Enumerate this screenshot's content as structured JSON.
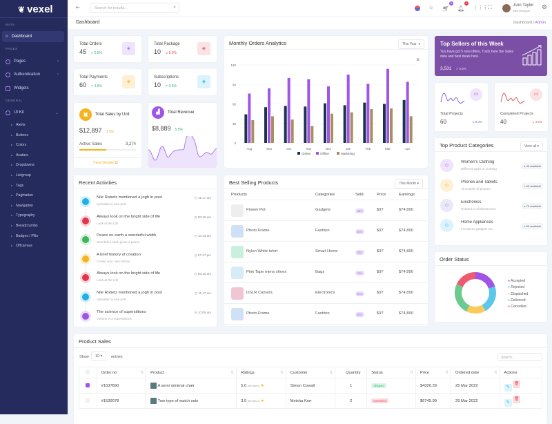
{
  "app": {
    "name": "vexel"
  },
  "sidebar": {
    "sections": [
      "MAIN",
      "PAGES",
      "GENERAL"
    ],
    "items": [
      {
        "label": "Dashboard",
        "icon": "home-icon",
        "active": true
      },
      {
        "label": "Pages",
        "icon": "pages-icon"
      },
      {
        "label": "Authentication",
        "icon": "auth-icon"
      },
      {
        "label": "Widgets",
        "icon": "widgets-icon"
      },
      {
        "label": "UI Kit",
        "icon": "uikit-icon"
      }
    ],
    "uikit": [
      "Alerts",
      "Buttons",
      "Colors",
      "Avatars",
      "Dropdowns",
      "Listgroup",
      "Tags",
      "Pagination",
      "Navigation",
      "Typography",
      "Breadcrumbs",
      "Badges / Pills",
      "Offcanvas"
    ]
  },
  "header": {
    "search_placeholder": "Search for results...",
    "cart_count": "5",
    "notif_count": "4",
    "user_name": "Json Taylor",
    "user_role": "Web Designer"
  },
  "page": {
    "title": "Dashboard",
    "breadcrumb": [
      "Dashboard",
      "Admin"
    ]
  },
  "stats": [
    {
      "label": "Total Orders",
      "value": "45",
      "change": "0.5%",
      "trend": "up",
      "color": "#a77be6",
      "bg": "#efe4fc"
    },
    {
      "label": "Total Package",
      "value": "10",
      "change": "8.0%",
      "trend": "down",
      "color": "#e2515f",
      "bg": "#fbe2e4"
    },
    {
      "label": "Total Payments",
      "value": "60",
      "change": "3.5%",
      "trend": "up",
      "color": "#f5b031",
      "bg": "#fdf0d5"
    },
    {
      "label": "Subscriptions",
      "value": "10",
      "change": "0.5%",
      "trend": "up",
      "color": "#2bb0e0",
      "bg": "#dbf3fb"
    }
  ],
  "sales_unit": {
    "title": "Total Sales by Unit",
    "value": "$12,897",
    "change": "3.5%",
    "active_label": "Active Sales",
    "active_value": "3,274",
    "progress": 0.48,
    "link": "View Details"
  },
  "revenue": {
    "title": "Total Revenue",
    "value": "$8,889",
    "change": "5.5%"
  },
  "chart_data": {
    "type": "bar",
    "title": "Monthly Orders Analytics",
    "filter": "This Year",
    "categories": [
      "Aug",
      "Sep",
      "Oct",
      "Nov",
      "Dec",
      "Jan",
      "Feb",
      "Mar",
      "Apr"
    ],
    "ylim": [
      0,
      120
    ],
    "yticks": [
      0,
      30,
      60,
      90,
      120
    ],
    "grid": true,
    "legend": "bottom",
    "series": [
      {
        "name": "Online",
        "color": "#1b3350",
        "values": [
          44,
          55,
          57,
          56,
          61,
          58,
          62,
          60,
          66
        ]
      },
      {
        "name": "Offline",
        "color": "#a155e6",
        "values": [
          76,
          84,
          100,
          98,
          87,
          105,
          91,
          114,
          94
        ]
      },
      {
        "name": "Marketing",
        "color": "#a98e5f",
        "values": [
          35,
          41,
          36,
          26,
          45,
          47,
          52,
          53,
          41
        ]
      }
    ]
  },
  "top_sellers": {
    "title": "Top Sellers of this Week",
    "text": "You have got 5 new offers, Track here the Sales data and best deals here.",
    "value": "3,531",
    "change": "0.5%"
  },
  "projects": [
    {
      "label": "Total Projects",
      "value": "60",
      "change": "8.0%",
      "color": "#8f5ed6",
      "bg": "#efe4fc"
    },
    {
      "label": "Completed Projects",
      "value": "40",
      "change": "4.0%",
      "color": "#e2515f",
      "bg": "#fbe2e4"
    }
  ],
  "activities": {
    "title": "Recent Activities",
    "items": [
      {
        "title": "Nile Robetz mentioned a jogh in post",
        "sub": "Uploaded a new post",
        "time": "11:17 am",
        "color": "#1fb1e6"
      },
      {
        "title": "Always look on the bright side of life",
        "sub": "Look at the Life",
        "time": "08:19 am",
        "color": "#e8334c"
      },
      {
        "title": "Peace on earth a wonderful width",
        "sub": "Wonderful earth gives a peace",
        "time": "10:43 am",
        "color": "#3cb55c"
      },
      {
        "title": "A brief history of creation",
        "sub": "Create your own history",
        "time": "07:27 pm",
        "color": "#f5b31d"
      },
      {
        "title": "Always look on the bright side of life",
        "sub": "Look at the Life",
        "time": "08:19 am",
        "color": "#e8334c"
      },
      {
        "title": "Nile Robetz mentioned a jogh in post",
        "sub": "Uploaded a new post",
        "time": "11:17 am",
        "color": "#1fb1e6"
      },
      {
        "title": "The science of superstitions",
        "sub": "Volume is a superstitions",
        "time": "10:09 am",
        "color": "#a155e6"
      }
    ]
  },
  "best_selling": {
    "title": "Best Selling Products",
    "filter": "This Month",
    "columns": [
      "Products",
      "Categories",
      "Sold",
      "Price",
      "Earnings"
    ],
    "rows": [
      {
        "name": "Flower Pot",
        "category": "Gadgets",
        "sold": "457",
        "price": "$97",
        "earnings": "$74,890",
        "thumb": "#eeeeee"
      },
      {
        "name": "Photo Frame",
        "category": "Fashion",
        "sold": "876",
        "price": "$97",
        "earnings": "$74,890",
        "thumb": "#cfe0f7"
      },
      {
        "name": "Nylon White tshirt",
        "category": "Smart Home",
        "sold": "432",
        "price": "$97",
        "earnings": "$74,890",
        "thumb": "#c9f0dc"
      },
      {
        "name": "Pink Tape mens shoes",
        "category": "Bags",
        "sold": "234",
        "price": "$97",
        "earnings": "$74,890",
        "thumb": "#d6ecf6"
      },
      {
        "name": "DSLR Camera",
        "category": "Electronics",
        "sold": "678",
        "price": "$97",
        "earnings": "$74,890",
        "thumb": "#f1c6d3"
      },
      {
        "name": "Photo Frame",
        "category": "Fashion",
        "sold": "876",
        "price": "$97",
        "earnings": "$74,890",
        "thumb": "#cfe0f7"
      }
    ]
  },
  "categories": {
    "title": "Top Product Categories",
    "filter": "View all",
    "items": [
      {
        "name": "Women's Clothing",
        "sub": "Different types of clothing",
        "avail": "40 available",
        "color": "#a155e6",
        "bg": "#efe4fc"
      },
      {
        "name": "Phones and Tablets",
        "sub": "All models of phones",
        "avail": "60 available",
        "color": "#f5a623",
        "bg": "#fdf0d5"
      },
      {
        "name": "Electronics",
        "sub": "Related to all Electronics",
        "avail": "70 available",
        "color": "#3cb55c",
        "bg": "#ece8fb"
      },
      {
        "name": "Home Appliances",
        "sub": "Furnitures,gadgets etc...",
        "avail": "80 available",
        "color": "#1fb1e6",
        "bg": "#dbf3fb"
      }
    ]
  },
  "order_status": {
    "title": "Order Status",
    "segments": [
      {
        "name": "Accepted",
        "value": 20,
        "color": "#a155e6"
      },
      {
        "name": "Rejected",
        "value": 22,
        "color": "#5bc8ea"
      },
      {
        "name": "Dispatched",
        "value": 15,
        "color": "#fcc95b"
      },
      {
        "name": "Delivered",
        "value": 25,
        "color": "#6cca8d"
      },
      {
        "name": "Cancelled",
        "value": 18,
        "color": "#ee5a6f"
      }
    ]
  },
  "product_sales": {
    "title": "Product Sales",
    "show": "Show",
    "entries_value": "10",
    "entries": "entries",
    "search_placeholder": "Search...",
    "columns": [
      "Order no",
      "Product",
      "Ratings",
      "Customer",
      "Quantity",
      "Status",
      "Price",
      "Ordered date",
      "Actions"
    ],
    "rows": [
      {
        "checked": true,
        "order": "#1537890",
        "product": "A semi minimal chair",
        "rating": "5.0",
        "votes": "(90 Mem)",
        "customer": "Simon Cowall",
        "qty": "1",
        "status": "Shipped",
        "status_color": "#2eb872",
        "status_bg": "#dcf5e6",
        "price": "$4320.29",
        "date": "25 Mar 2022"
      },
      {
        "checked": false,
        "order": "#1539078",
        "product": "Two type of watch sets",
        "rating": "3.0",
        "votes": "(50 Mem)",
        "customer": "Meisha Kerr",
        "qty": "2",
        "status": "Cancelled",
        "status_color": "#e2515f",
        "status_bg": "#fbdde0",
        "price": "$6745.99",
        "date": "25 Mar 2022"
      }
    ]
  }
}
